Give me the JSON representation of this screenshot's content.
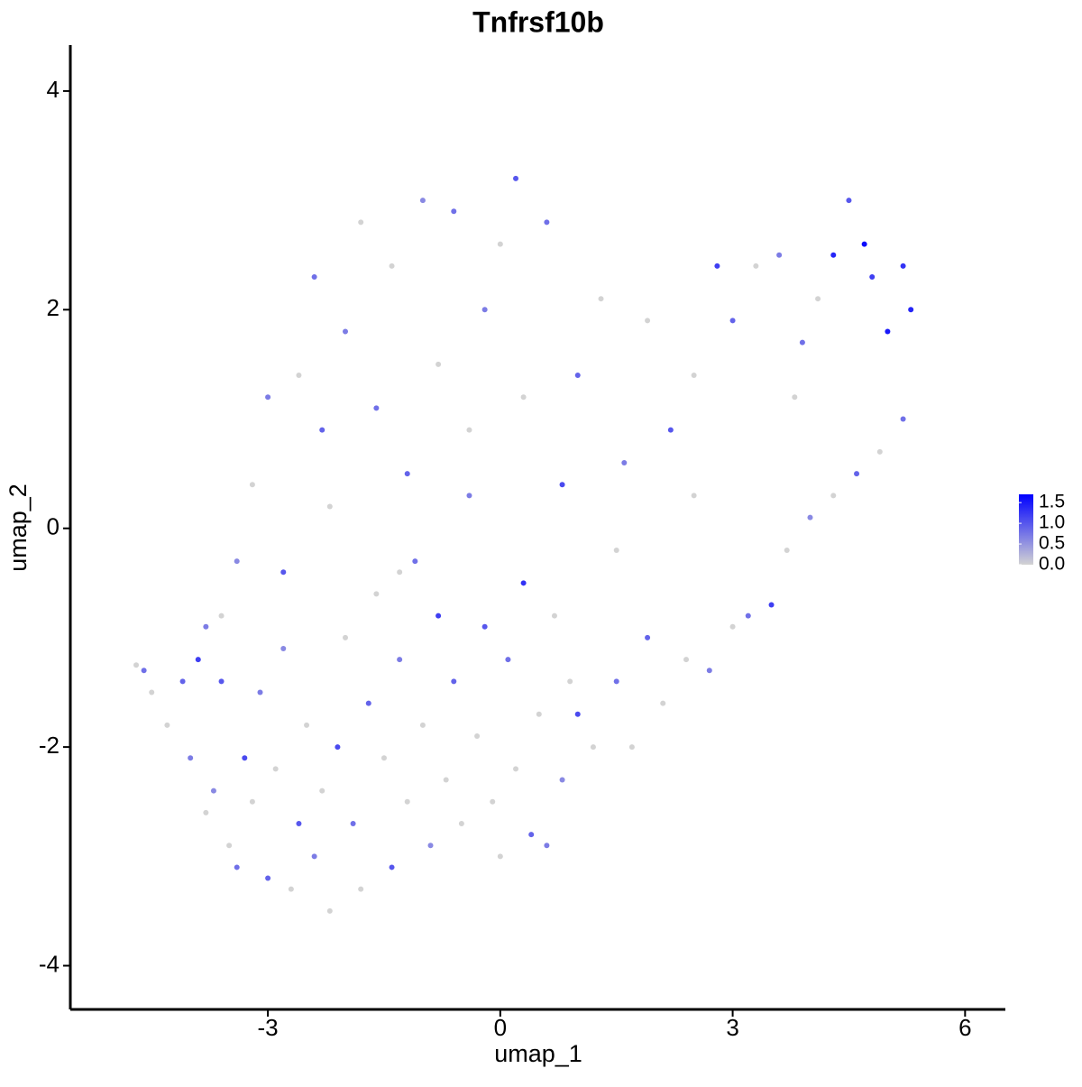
{
  "chart_data": {
    "type": "scatter",
    "title": "Tnfrsf10b",
    "xlabel": "umap_1",
    "ylabel": "umap_2",
    "xlim": [
      -5.55,
      6.52
    ],
    "ylim": [
      -4.4,
      4.42
    ],
    "xticks": [
      {
        "value": -3,
        "label": "-3"
      },
      0,
      3,
      6
    ],
    "yticks": [
      {
        "value": -4,
        "label": "-4"
      },
      {
        "value": -2,
        "label": "-2"
      },
      0,
      2,
      4
    ],
    "low_color": "#d3d3d3",
    "high_color": "#0000ff",
    "clim": [
      0,
      1.7
    ],
    "cticks": [
      {
        "value": 0,
        "label": "0.0"
      },
      {
        "value": 0.5,
        "label": "0.5"
      },
      {
        "value": 1,
        "label": "1.0"
      },
      {
        "value": 1.5,
        "label": "1.5"
      }
    ],
    "x": [
      -4.7,
      -4.6,
      -4.5,
      -4.3,
      -4.1,
      -4.0,
      -3.9,
      -3.8,
      -3.7,
      -3.6,
      -3.5,
      -3.4,
      -3.3,
      -3.2,
      -3.1,
      -3.0,
      -2.9,
      -2.8,
      -2.7,
      -2.6,
      -2.5,
      -2.4,
      -2.3,
      -2.2,
      -2.1,
      -2.0,
      -1.9,
      -1.8,
      -1.7,
      -1.6,
      -1.5,
      -1.4,
      -1.3,
      -1.2,
      -1.1,
      -1.0,
      -0.9,
      -0.8,
      -0.7,
      -0.6,
      -0.5,
      -0.4,
      -0.3,
      -0.2,
      -0.1,
      0.0,
      0.1,
      0.2,
      0.3,
      0.4,
      0.5,
      0.6,
      0.7,
      0.8,
      0.9,
      1.0,
      1.2,
      1.5,
      1.7,
      1.9,
      2.1,
      2.4,
      2.7,
      3.0,
      3.2,
      3.5,
      3.7,
      4.0,
      4.3,
      4.6,
      4.9,
      5.2,
      5.3,
      5.2,
      5.0,
      4.8,
      4.7,
      4.5,
      4.3,
      4.1,
      3.9,
      3.6,
      3.3,
      3.0,
      2.8,
      2.5,
      2.2,
      1.9,
      1.6,
      1.3,
      1.0,
      0.8,
      0.6,
      0.3,
      0.2,
      0.0,
      -0.2,
      -0.4,
      -0.6,
      -0.8,
      -1.0,
      -1.2,
      -1.4,
      -1.6,
      -1.8,
      -2.0,
      -2.2,
      -2.4,
      -2.6,
      -2.8,
      -3.0,
      -3.2,
      -3.4,
      -3.6,
      -3.8,
      -2.3,
      -1.3,
      1.5,
      2.5,
      3.8
    ],
    "y": [
      -1.25,
      -1.3,
      -1.5,
      -1.8,
      -1.4,
      -2.1,
      -1.2,
      -2.6,
      -2.4,
      -1.4,
      -2.9,
      -3.1,
      -2.1,
      -2.5,
      -1.5,
      -3.2,
      -2.2,
      -1.1,
      -3.3,
      -2.7,
      -1.8,
      -3.0,
      -2.4,
      -3.5,
      -2.0,
      -1.0,
      -2.7,
      -3.3,
      -1.6,
      -0.6,
      -2.1,
      -3.1,
      -1.2,
      -2.5,
      -0.3,
      -1.8,
      -2.9,
      -0.8,
      -2.3,
      -1.4,
      -2.7,
      0.3,
      -1.9,
      -0.9,
      -2.5,
      -3.0,
      -1.2,
      -2.2,
      -0.5,
      -2.8,
      -1.7,
      -2.9,
      -0.8,
      -2.3,
      -1.4,
      -1.7,
      -2.0,
      -1.4,
      -2.0,
      -1.0,
      -1.6,
      -1.2,
      -1.3,
      -0.9,
      -0.8,
      -0.7,
      -0.2,
      0.1,
      0.3,
      0.5,
      0.7,
      1.0,
      2.0,
      2.4,
      1.8,
      2.3,
      2.6,
      3.0,
      2.5,
      2.1,
      1.7,
      2.5,
      2.4,
      1.9,
      2.4,
      1.4,
      0.9,
      1.9,
      0.6,
      2.1,
      1.4,
      0.4,
      2.8,
      1.2,
      3.2,
      2.6,
      2.0,
      0.9,
      2.9,
      1.5,
      3.0,
      0.5,
      2.4,
      1.1,
      2.8,
      1.8,
      0.2,
      2.3,
      1.4,
      -0.4,
      1.2,
      0.4,
      -0.3,
      -0.8,
      -0.9,
      0.9,
      -0.4,
      -0.2,
      0.3,
      1.2
    ],
    "values": [
      0,
      0.8,
      0,
      0,
      0.9,
      0.7,
      1.2,
      0,
      0.6,
      1.0,
      0,
      0.8,
      1.1,
      0,
      0.7,
      0.9,
      0,
      0.6,
      0,
      1.0,
      0,
      0.7,
      0,
      0,
      1.1,
      0,
      0.8,
      0,
      0.9,
      0,
      0,
      1.0,
      0.7,
      0,
      0.8,
      0,
      0.6,
      1.2,
      0,
      0.9,
      0,
      0.7,
      0,
      1.0,
      0,
      0,
      0.8,
      0,
      1.3,
      0.9,
      0,
      0.7,
      0,
      0.6,
      0,
      1.1,
      0,
      0.8,
      0,
      0.9,
      0,
      0,
      0.7,
      0,
      0.8,
      1.2,
      0,
      0.6,
      0,
      0.9,
      0,
      0.8,
      1.4,
      1.3,
      1.5,
      1.2,
      1.6,
      1.0,
      1.4,
      0,
      0.8,
      0.7,
      0,
      0.9,
      1.2,
      0,
      1.0,
      0,
      0.7,
      0,
      0.9,
      1.1,
      0.8,
      0,
      1.0,
      0,
      0.7,
      0,
      0.8,
      0,
      0.6,
      0.9,
      0,
      0.8,
      0,
      0.7,
      0,
      0.8,
      0,
      1.0,
      0.7,
      0,
      0.6,
      0,
      0.7,
      0.9,
      0,
      0,
      0,
      0
    ]
  }
}
